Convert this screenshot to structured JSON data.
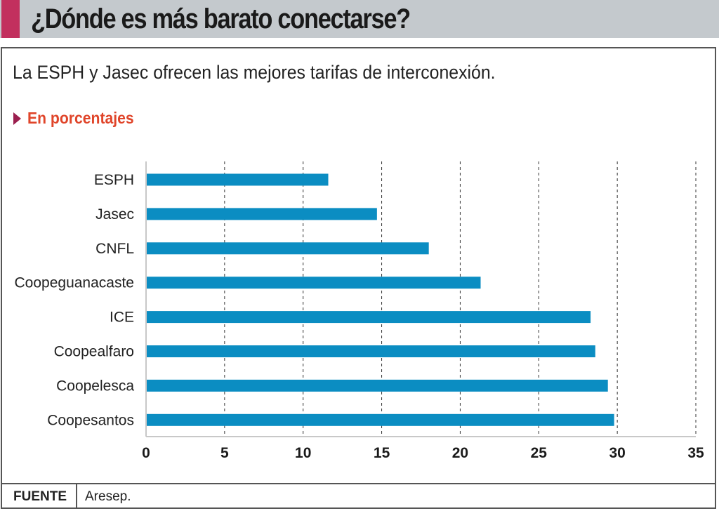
{
  "header": {
    "title": "¿Dónde es más barato conectarse?",
    "accent_color": "#c2305e"
  },
  "subtitle": "La ESPH y Jasec ofrecen las mejores tarifas de interconexión.",
  "unit": {
    "icon": "triangle-right-icon",
    "label": "En porcentajes"
  },
  "footer": {
    "label": "FUENTE",
    "value": "Aresep."
  },
  "chart_data": {
    "type": "bar",
    "orientation": "horizontal",
    "title": "¿Dónde es más barato conectarse?",
    "subtitle": "La ESPH y Jasec ofrecen las mejores tarifas de interconexión.",
    "xlabel": "En porcentajes",
    "ylabel": "",
    "categories": [
      "ESPH",
      "Jasec",
      "CNFL",
      "Coopeguanacaste",
      "ICE",
      "Coopealfaro",
      "Coopelesca",
      "Coopesantos"
    ],
    "values": [
      11.6,
      14.7,
      18.0,
      21.3,
      28.3,
      28.6,
      29.4,
      29.8
    ],
    "xlim": [
      0,
      35
    ],
    "xticks": [
      0,
      5,
      10,
      15,
      20,
      25,
      30,
      35
    ],
    "grid": "vertical-dashed",
    "bar_color": "#0b8dc2",
    "legend": "none",
    "source": "Aresep."
  }
}
